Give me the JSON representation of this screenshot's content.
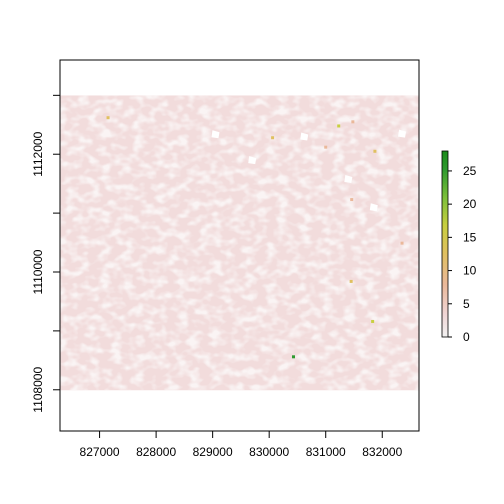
{
  "chart_data": {
    "type": "heatmap",
    "title": "",
    "xlabel": "",
    "ylabel": "",
    "xlim": [
      826300,
      832650
    ],
    "ylim": [
      1107300,
      1113600
    ],
    "raster_extent": {
      "xmin": 826300,
      "xmax": 832650,
      "ymin": 1107990,
      "ymax": 1113000
    },
    "x_ticks": [
      "827000",
      "828000",
      "829000",
      "830000",
      "831000",
      "832000"
    ],
    "x_tick_values": [
      827000,
      828000,
      829000,
      830000,
      831000,
      832000
    ],
    "y_ticks": [
      "1108000",
      "1110000",
      "1112000"
    ],
    "y_tick_values": [
      1108000,
      1110000,
      1112000
    ],
    "y_minor_tick_values": [
      1109000,
      1111000,
      1113000
    ],
    "legend": {
      "position": "right",
      "min": 0,
      "max": 28,
      "ticks": [
        "0",
        "5",
        "10",
        "15",
        "20",
        "25"
      ],
      "tick_values": [
        0,
        5,
        10,
        15,
        20,
        25
      ],
      "colors": [
        "#f2f2f2",
        "#f0d6d6",
        "#eab89a",
        "#e0c060",
        "#c8cf40",
        "#7cbf3a",
        "#2f9a2f",
        "#1a8a1a"
      ]
    },
    "hotspots": [
      {
        "x": 827150,
        "y": 1112620,
        "value": 10
      },
      {
        "x": 831230,
        "y": 1112480,
        "value": 15
      },
      {
        "x": 830060,
        "y": 1112280,
        "value": 10
      },
      {
        "x": 831480,
        "y": 1112550,
        "value": 8
      },
      {
        "x": 831870,
        "y": 1112050,
        "value": 12
      },
      {
        "x": 831000,
        "y": 1112120,
        "value": 6
      },
      {
        "x": 831460,
        "y": 1111230,
        "value": 7
      },
      {
        "x": 831450,
        "y": 1109840,
        "value": 12
      },
      {
        "x": 831830,
        "y": 1109160,
        "value": 14
      },
      {
        "x": 830430,
        "y": 1108560,
        "value": 25
      },
      {
        "x": 832350,
        "y": 1110490,
        "value": 9
      }
    ],
    "nodata_patches": [
      {
        "x": 829700,
        "y": 1111900
      },
      {
        "x": 831850,
        "y": 1111100
      },
      {
        "x": 829050,
        "y": 1112340
      },
      {
        "x": 830620,
        "y": 1112300
      },
      {
        "x": 831400,
        "y": 1111580
      },
      {
        "x": 832350,
        "y": 1112350
      }
    ]
  }
}
